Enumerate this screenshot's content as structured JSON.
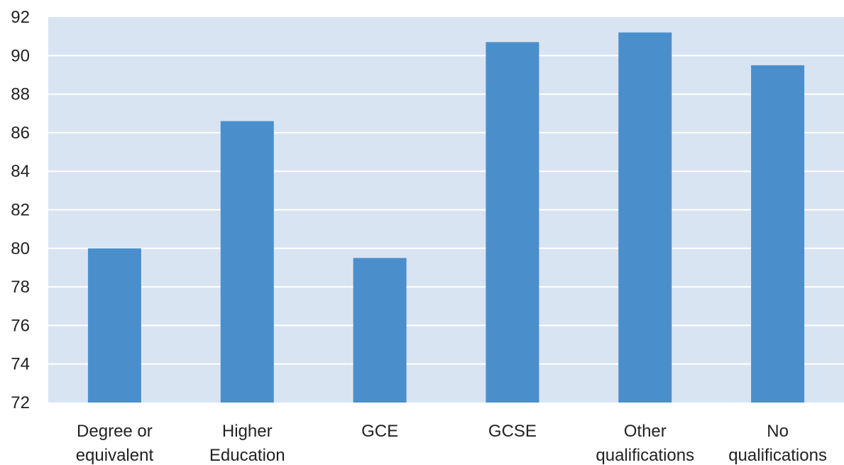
{
  "chart_data": {
    "type": "bar",
    "title": "",
    "xlabel": "",
    "ylabel": "",
    "categories": [
      [
        "Degree or",
        "equivalent"
      ],
      [
        "Higher",
        "Education"
      ],
      [
        "GCE"
      ],
      [
        "GCSE"
      ],
      [
        "Other",
        "qualifications"
      ],
      [
        "No",
        "qualifications"
      ]
    ],
    "values": [
      80.0,
      86.6,
      79.5,
      90.7,
      91.2,
      89.5
    ],
    "ylim": [
      72,
      92
    ],
    "yticks": [
      72,
      74,
      76,
      78,
      80,
      82,
      84,
      86,
      88,
      90,
      92
    ],
    "grid": true,
    "legend": "none",
    "colors": {
      "bar": "#4a8fcc",
      "plot_background": "#d9e4f3",
      "gridline": "#ffffff"
    }
  }
}
